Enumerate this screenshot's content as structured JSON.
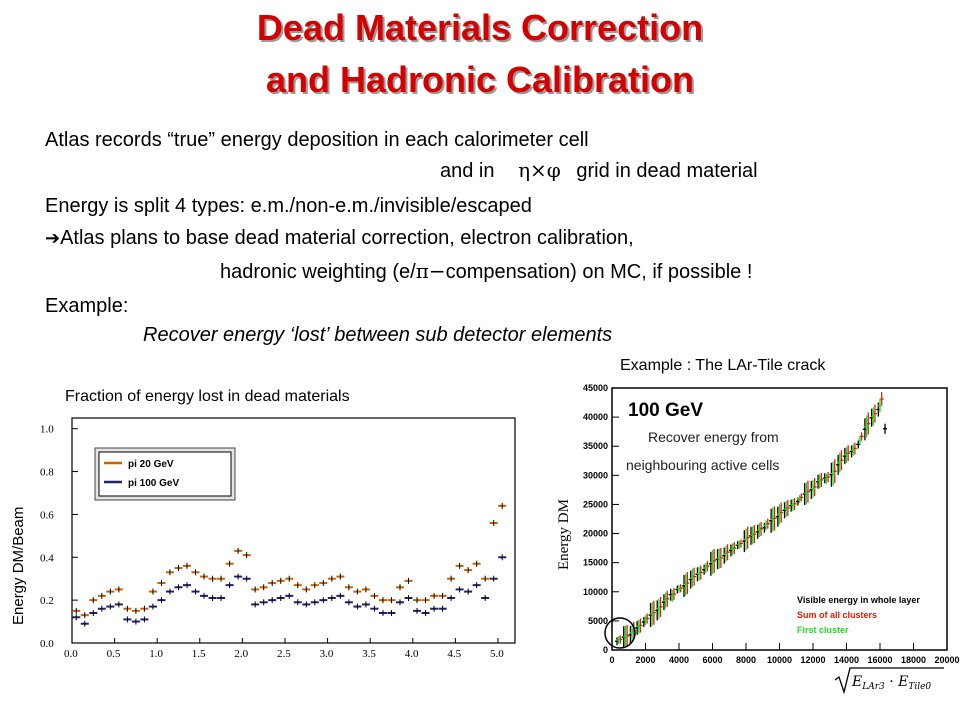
{
  "title": {
    "line1": "Dead Materials Correction",
    "line2": "and Hadronic Calibration"
  },
  "body": {
    "line1": "Atlas records “true” energy deposition in each calorimeter cell",
    "line2_pre": "and in",
    "line2_sym": "η×φ",
    "line2_post": "grid in dead material",
    "line3": "Energy is split 4 types:  e.m./non-e.m./invisible/escaped",
    "line4_arrow": "➔",
    "line4": "Atlas plans to base dead material correction, electron calibration,",
    "line5_pre": "hadronic weighting (e/",
    "line5_sym": "π−",
    "line5_post": "compensation) on MC, if possible !",
    "example_label": "Example:",
    "example_text": "Recover energy ‘lost’ between sub detector elements"
  },
  "left_plot": {
    "caption": "Fraction of energy lost in dead materials",
    "ylabel": "Energy DM/Beam",
    "legend": [
      "pi 20 GeV",
      "pi 100 GeV"
    ]
  },
  "right_plot": {
    "caption": "Example : The LAr-Tile crack",
    "ylabel": "Energy DM",
    "annotation": "Recover energy from neighbouring active cells",
    "in_plot_label": "100 GeV",
    "legend": [
      "Visible energy in whole layer",
      "Sum of all clusters",
      "First cluster"
    ],
    "xaxis_formula": "√(E_LAr3 · E_Tile0)"
  },
  "colors": {
    "title": "#d40000",
    "series_black": "#000000",
    "series_red": "#e02000",
    "series_green": "#22dd22",
    "series_orange": "#c86400",
    "series_navy": "#202070"
  },
  "chart_data": [
    {
      "type": "scatter",
      "title": "",
      "xlabel": "",
      "ylabel": "Energy DM/Beam",
      "xlim": [
        0,
        5.2
      ],
      "ylim": [
        0,
        1.05
      ],
      "x_ticks": [
        "0.0",
        "0.5",
        "1.0",
        "1.5",
        "2.0",
        "2.5",
        "3.0",
        "3.5",
        "4.0",
        "4.5",
        "5.0"
      ],
      "y_ticks": [
        "0.0",
        "0.2",
        "0.4",
        "0.6",
        "0.8",
        "1.0"
      ],
      "legend_position": "top-left",
      "series": [
        {
          "name": "pi 20 GeV",
          "x": [
            0.05,
            0.15,
            0.25,
            0.35,
            0.45,
            0.55,
            0.65,
            0.75,
            0.85,
            0.95,
            1.05,
            1.15,
            1.25,
            1.35,
            1.45,
            1.55,
            1.65,
            1.75,
            1.85,
            1.95,
            2.05,
            2.15,
            2.25,
            2.35,
            2.45,
            2.55,
            2.65,
            2.75,
            2.85,
            2.95,
            3.05,
            3.15,
            3.25,
            3.35,
            3.45,
            3.55,
            3.65,
            3.75,
            3.85,
            3.95,
            4.05,
            4.15,
            4.25,
            4.35,
            4.45,
            4.55,
            4.65,
            4.75,
            4.85,
            4.95,
            5.05
          ],
          "values": [
            0.15,
            0.13,
            0.2,
            0.22,
            0.24,
            0.25,
            0.16,
            0.15,
            0.16,
            0.24,
            0.28,
            0.33,
            0.35,
            0.36,
            0.33,
            0.31,
            0.3,
            0.3,
            0.37,
            0.43,
            0.41,
            0.25,
            0.26,
            0.28,
            0.29,
            0.3,
            0.27,
            0.25,
            0.27,
            0.28,
            0.3,
            0.31,
            0.26,
            0.24,
            0.25,
            0.22,
            0.2,
            0.2,
            0.26,
            0.29,
            0.2,
            0.2,
            0.22,
            0.22,
            0.3,
            0.36,
            0.34,
            0.37,
            0.3,
            0.56,
            0.64
          ]
        },
        {
          "name": "pi 100 GeV",
          "x": [
            0.05,
            0.15,
            0.25,
            0.35,
            0.45,
            0.55,
            0.65,
            0.75,
            0.85,
            0.95,
            1.05,
            1.15,
            1.25,
            1.35,
            1.45,
            1.55,
            1.65,
            1.75,
            1.85,
            1.95,
            2.05,
            2.15,
            2.25,
            2.35,
            2.45,
            2.55,
            2.65,
            2.75,
            2.85,
            2.95,
            3.05,
            3.15,
            3.25,
            3.35,
            3.45,
            3.55,
            3.65,
            3.75,
            3.85,
            3.95,
            4.05,
            4.15,
            4.25,
            4.35,
            4.45,
            4.55,
            4.65,
            4.75,
            4.85,
            4.95,
            5.05
          ],
          "values": [
            0.12,
            0.09,
            0.14,
            0.16,
            0.17,
            0.18,
            0.11,
            0.1,
            0.11,
            0.17,
            0.2,
            0.24,
            0.26,
            0.27,
            0.24,
            0.22,
            0.21,
            0.21,
            0.27,
            0.31,
            0.3,
            0.18,
            0.19,
            0.2,
            0.21,
            0.22,
            0.19,
            0.18,
            0.19,
            0.2,
            0.21,
            0.22,
            0.19,
            0.17,
            0.18,
            0.16,
            0.14,
            0.14,
            0.19,
            0.21,
            0.15,
            0.14,
            0.16,
            0.16,
            0.21,
            0.25,
            0.24,
            0.27,
            0.21,
            0.3,
            0.4
          ]
        }
      ]
    },
    {
      "type": "scatter",
      "title": "100 GeV",
      "xlabel": "√(E_LAr3 · E_Tile0)",
      "ylabel": "Energy DM",
      "xlim": [
        0,
        20000
      ],
      "ylim": [
        0,
        45000
      ],
      "x_ticks": [
        "0",
        "2000",
        "4000",
        "6000",
        "8000",
        "10000",
        "12000",
        "14000",
        "16000",
        "18000",
        "20000"
      ],
      "y_ticks": [
        "0",
        "5000",
        "10000",
        "15000",
        "20000",
        "25000",
        "30000",
        "35000",
        "40000",
        "45000"
      ],
      "legend_position": "bottom-right",
      "series": [
        {
          "name": "Visible energy in whole layer",
          "x": [
            300,
            700,
            1100,
            1500,
            1900,
            2300,
            2700,
            3100,
            3500,
            3900,
            4300,
            4700,
            5100,
            5500,
            5900,
            6300,
            6700,
            7100,
            7500,
            7900,
            8300,
            8700,
            9100,
            9500,
            9900,
            10300,
            10700,
            11100,
            11500,
            11900,
            12300,
            12700,
            13100,
            13500,
            13900,
            14300,
            14700,
            15100,
            15500,
            15900,
            16300
          ],
          "values": [
            1500,
            2200,
            2600,
            3800,
            4800,
            6000,
            6800,
            8200,
            9500,
            10400,
            11000,
            12100,
            13000,
            13800,
            14800,
            15600,
            16200,
            17100,
            18000,
            18700,
            19600,
            20300,
            21000,
            22200,
            22900,
            24000,
            24800,
            25500,
            26800,
            27500,
            28900,
            29500,
            30100,
            31800,
            33300,
            34100,
            35300,
            37900,
            39900,
            41300,
            38000
          ]
        },
        {
          "name": "Sum of all clusters",
          "x": [
            500,
            900,
            1300,
            1700,
            2100,
            2500,
            2900,
            3300,
            3700,
            4100,
            4500,
            4900,
            5300,
            5700,
            6100,
            6500,
            6900,
            7300,
            7700,
            8100,
            8500,
            8900,
            9300,
            9700,
            10100,
            10500,
            10900,
            11300,
            11700,
            12100,
            12500,
            12900,
            13300,
            13700,
            14100,
            14500,
            14900,
            15300,
            15700,
            16100
          ],
          "values": [
            1800,
            2400,
            3300,
            4200,
            5400,
            6400,
            7400,
            8800,
            9600,
            10600,
            11500,
            12600,
            13300,
            14400,
            15300,
            15800,
            16800,
            17500,
            18300,
            19300,
            19900,
            20800,
            21700,
            22600,
            23600,
            24400,
            25100,
            26200,
            27200,
            28000,
            29200,
            29700,
            30700,
            32600,
            33800,
            34600,
            36700,
            38900,
            40600,
            43100
          ]
        },
        {
          "name": "First cluster",
          "x": [
            400,
            800,
            1200,
            1600,
            2000,
            2400,
            2800,
            3200,
            3600,
            4000,
            4400,
            4800,
            5200,
            5600,
            6000,
            6400,
            6800,
            7200,
            7600,
            8000,
            8400,
            8800,
            9200,
            9600,
            10000,
            10400,
            10800,
            11200,
            11600,
            12000,
            12400,
            12800,
            13200,
            13600,
            14000,
            14400,
            14800,
            15200,
            15600,
            16000
          ],
          "values": [
            1700,
            2300,
            3000,
            4000,
            5100,
            6200,
            7100,
            8500,
            9300,
            10500,
            11200,
            12400,
            13100,
            14100,
            15100,
            15700,
            16500,
            17300,
            18100,
            19000,
            19700,
            20600,
            21400,
            22400,
            23300,
            24200,
            24900,
            25900,
            26900,
            27700,
            29000,
            29400,
            30300,
            32200,
            33500,
            34300,
            36000,
            38400,
            40100,
            42000
          ]
        }
      ]
    }
  ]
}
